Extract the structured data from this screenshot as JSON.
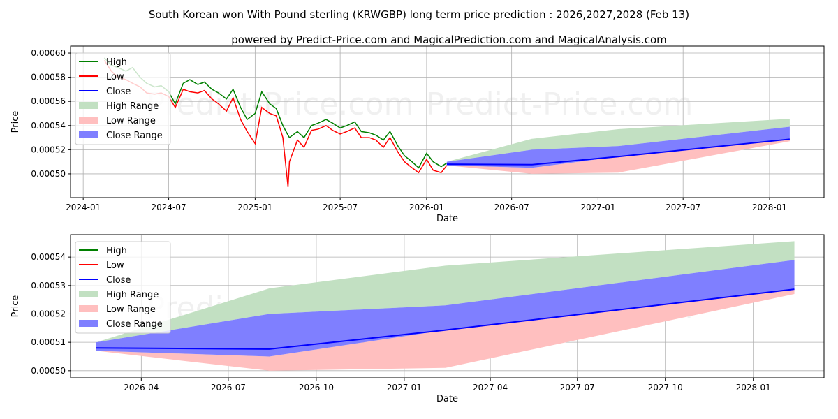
{
  "chart_data": [
    {
      "type": "line",
      "title": "South Korean won With Pound sterling (KRWGBP) long term price prediction : 2026,2027,2028 (Feb 13)",
      "subtitle": "powered by Predict-Price.com and MagicalPrediction.com and MagicalAnalysis.com",
      "xlabel": "Date",
      "ylabel": "Price",
      "xlim": [
        "2023-12-05",
        "2028-04-26"
      ],
      "ylim": [
        0.0004803,
        0.0006058
      ],
      "xticks": [
        "2024-01",
        "2024-07",
        "2025-01",
        "2025-07",
        "2026-01",
        "2026-07",
        "2027-01",
        "2027-07",
        "2028-01"
      ],
      "yticks": [
        "0.00050",
        "0.00052",
        "0.00054",
        "0.00056",
        "0.00058",
        "0.00060"
      ],
      "yticks_values": [
        0.0005,
        0.00052,
        0.00054,
        0.00056,
        0.00058,
        0.0006
      ],
      "grid": true,
      "legend_position": "top-left",
      "legend": [
        "High",
        "Low",
        "Close",
        "High Range",
        "Low Range",
        "Close Range"
      ],
      "watermark": "Predict-Price.com",
      "history": {
        "dates": [
          "2024-02-15",
          "2024-03-01",
          "2024-03-15",
          "2024-04-01",
          "2024-04-15",
          "2024-05-01",
          "2024-05-15",
          "2024-06-01",
          "2024-06-15",
          "2024-07-01",
          "2024-07-15",
          "2024-08-01",
          "2024-08-15",
          "2024-09-01",
          "2024-09-15",
          "2024-10-01",
          "2024-10-15",
          "2024-11-01",
          "2024-11-15",
          "2024-12-01",
          "2024-12-15",
          "2025-01-01",
          "2025-01-15",
          "2025-02-01",
          "2025-02-15",
          "2025-03-01",
          "2025-03-12",
          "2025-03-15",
          "2025-04-01",
          "2025-04-15",
          "2025-05-01",
          "2025-05-15",
          "2025-06-01",
          "2025-06-15",
          "2025-07-01",
          "2025-07-15",
          "2025-08-01",
          "2025-08-15",
          "2025-09-01",
          "2025-09-15",
          "2025-10-01",
          "2025-10-15",
          "2025-11-01",
          "2025-11-15",
          "2025-12-01",
          "2025-12-15",
          "2026-01-01",
          "2026-01-15",
          "2026-02-01",
          "2026-02-13"
        ],
        "high": [
          0.000596,
          0.00059,
          0.000588,
          0.000585,
          0.000588,
          0.00058,
          0.000575,
          0.000572,
          0.000573,
          0.000568,
          0.000558,
          0.000575,
          0.000578,
          0.000574,
          0.000576,
          0.00057,
          0.000567,
          0.000562,
          0.00057,
          0.000555,
          0.000545,
          0.00055,
          0.000568,
          0.000558,
          0.000554,
          0.00054,
          0.000532,
          0.00053,
          0.000535,
          0.00053,
          0.00054,
          0.000542,
          0.000545,
          0.000542,
          0.000538,
          0.00054,
          0.000543,
          0.000535,
          0.000534,
          0.000532,
          0.000528,
          0.000535,
          0.000523,
          0.000515,
          0.00051,
          0.000505,
          0.000517,
          0.00051,
          0.000506,
          0.000509
        ],
        "low": [
          0.000594,
          0.000585,
          0.00058,
          0.000578,
          0.000575,
          0.000572,
          0.000567,
          0.000566,
          0.000567,
          0.000564,
          0.000555,
          0.00057,
          0.000568,
          0.000567,
          0.000569,
          0.000562,
          0.000558,
          0.000552,
          0.000563,
          0.000545,
          0.000535,
          0.000525,
          0.000555,
          0.00055,
          0.000548,
          0.00053,
          0.000489,
          0.00051,
          0.000528,
          0.000522,
          0.000536,
          0.000537,
          0.00054,
          0.000536,
          0.000533,
          0.000535,
          0.000538,
          0.00053,
          0.00053,
          0.000528,
          0.000522,
          0.00053,
          0.000518,
          0.00051,
          0.000505,
          0.000501,
          0.000512,
          0.000503,
          0.000501,
          0.000507
        ]
      }
    },
    {
      "type": "area",
      "xlabel": "Date",
      "ylabel": "Price",
      "xlim": [
        "2026-01-17",
        "2028-03-15"
      ],
      "ylim": [
        0.0004975,
        0.0005479
      ],
      "xticks": [
        "2026-04",
        "2026-07",
        "2026-10",
        "2027-01",
        "2027-04",
        "2027-07",
        "2027-10",
        "2028-01"
      ],
      "yticks": [
        "0.00050",
        "0.00051",
        "0.00052",
        "0.00053",
        "0.00054"
      ],
      "yticks_values": [
        0.0005,
        0.00051,
        0.00052,
        0.00053,
        0.00054
      ],
      "grid": true,
      "legend_position": "top-left",
      "legend": [
        "High",
        "Low",
        "Close",
        "High Range",
        "Low Range",
        "Close Range"
      ],
      "watermark": "Predict-Price.com"
    }
  ],
  "forecast": {
    "dates": [
      "2026-02-13",
      "2026-08-13",
      "2027-02-13",
      "2028-02-13"
    ],
    "high": [
      0.00051,
      0.000529,
      0.000537,
      0.0005456
    ],
    "low": [
      0.000507,
      0.0005,
      0.000501,
      0.000527
    ],
    "close": [
      0.000508,
      0.0005076,
      0.0005143,
      0.0005287
    ],
    "close_upper": [
      0.00051,
      0.00052,
      0.000523,
      0.000539
    ],
    "close_lower": [
      0.000507,
      0.000505,
      0.0005143,
      0.0005287
    ]
  },
  "colors": {
    "high": "#008000",
    "low": "#ff0000",
    "close": "#0000ff",
    "high_range": "#c2e0c2",
    "low_range": "#ffbfbf",
    "close_range": "#7f7fff"
  }
}
